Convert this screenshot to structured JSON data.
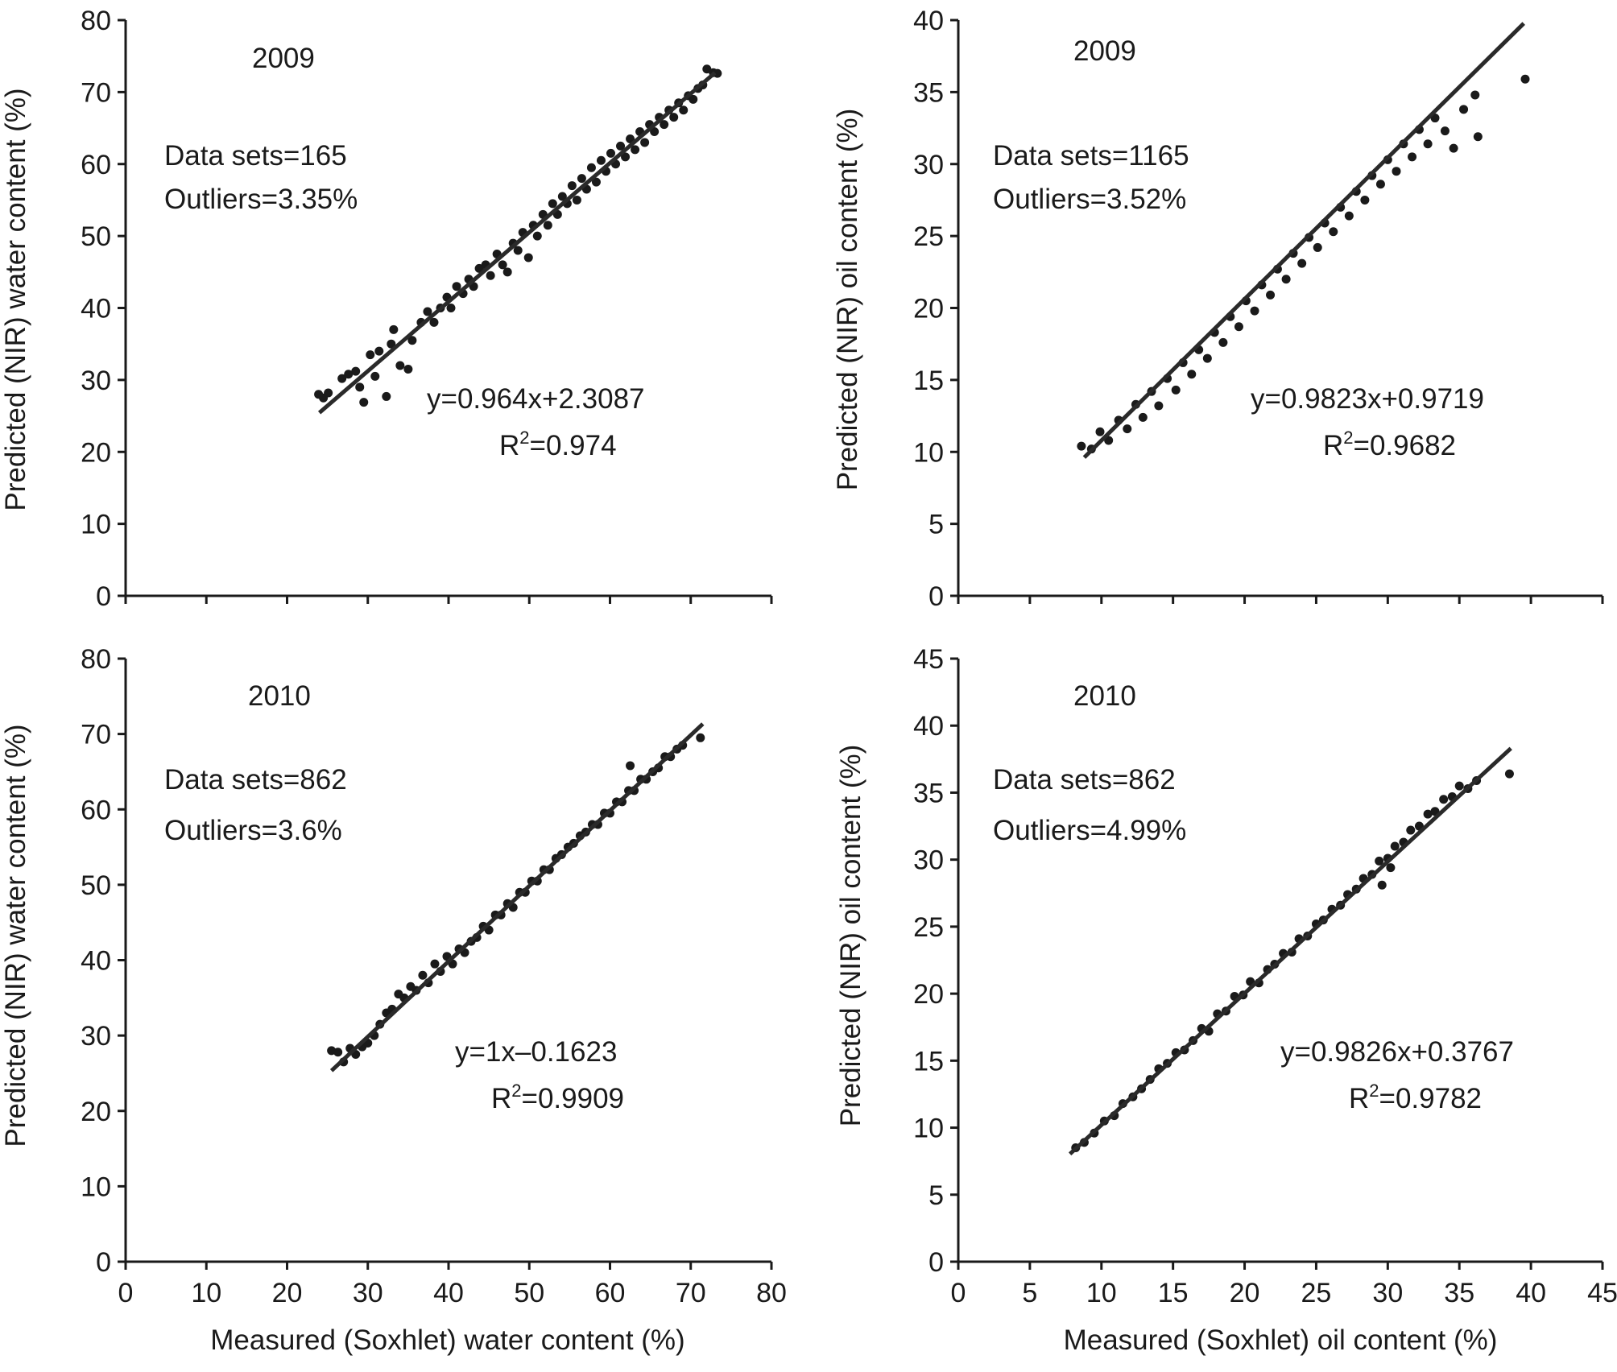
{
  "figure": {
    "xlabel_water": "Measured (Soxhlet) water content (%)",
    "xlabel_oil": "Measured (Soxhlet) oil content (%)"
  },
  "chart_data": [
    {
      "type": "scatter",
      "panel": "top-left",
      "year": "2009",
      "ylabel": "Predicted (NIR) water content (%)",
      "xlabel": "",
      "xlim": [
        0,
        80
      ],
      "ylim": [
        0,
        80
      ],
      "xticks": [
        0,
        10,
        20,
        30,
        40,
        50,
        60,
        70,
        80
      ],
      "yticks": [
        0,
        10,
        20,
        30,
        40,
        50,
        60,
        70,
        80
      ],
      "show_x_tick_labels": false,
      "data_sets_label": "Data sets=165",
      "outliers_label": "Outliers=3.35%",
      "equation_label": "y=0.964x+2.3087",
      "r2_label": "=0.974",
      "fit": {
        "slope": 0.964,
        "intercept": 2.3087,
        "x_range": [
          24,
          73
        ]
      },
      "points": [
        [
          23.9,
          28
        ],
        [
          24.5,
          27.5
        ],
        [
          25.1,
          28.2
        ],
        [
          26.8,
          30.2
        ],
        [
          27.6,
          30.8
        ],
        [
          28.5,
          31.2
        ],
        [
          29,
          29
        ],
        [
          29.5,
          26.9
        ],
        [
          30.3,
          33.5
        ],
        [
          30.9,
          30.5
        ],
        [
          31.4,
          34
        ],
        [
          32.3,
          27.7
        ],
        [
          32.9,
          35
        ],
        [
          33.2,
          37
        ],
        [
          34,
          32
        ],
        [
          35,
          31.5
        ],
        [
          35.5,
          35.5
        ],
        [
          36.6,
          38
        ],
        [
          37.4,
          39.5
        ],
        [
          38.2,
          38
        ],
        [
          39,
          40
        ],
        [
          39.8,
          41.5
        ],
        [
          40.3,
          40
        ],
        [
          41,
          43
        ],
        [
          41.8,
          42
        ],
        [
          42.5,
          44
        ],
        [
          43.1,
          43
        ],
        [
          43.8,
          45.5
        ],
        [
          44.6,
          46
        ],
        [
          45.2,
          44.5
        ],
        [
          46,
          47.5
        ],
        [
          46.7,
          46
        ],
        [
          47.3,
          45
        ],
        [
          48,
          49
        ],
        [
          48.6,
          48
        ],
        [
          49.2,
          50.5
        ],
        [
          49.9,
          47
        ],
        [
          50.5,
          51.5
        ],
        [
          51,
          50
        ],
        [
          51.7,
          53
        ],
        [
          52.3,
          51.5
        ],
        [
          52.9,
          54.5
        ],
        [
          53.5,
          53
        ],
        [
          54.1,
          55.5
        ],
        [
          54.7,
          54.5
        ],
        [
          55.3,
          57
        ],
        [
          55.9,
          55
        ],
        [
          56.5,
          58
        ],
        [
          57.1,
          56.5
        ],
        [
          57.7,
          59.5
        ],
        [
          58.3,
          57.5
        ],
        [
          58.9,
          60.5
        ],
        [
          59.5,
          59
        ],
        [
          60.1,
          61.5
        ],
        [
          60.7,
          60
        ],
        [
          61.3,
          62.5
        ],
        [
          61.9,
          61
        ],
        [
          62.5,
          63.5
        ],
        [
          63.1,
          62
        ],
        [
          63.7,
          64.5
        ],
        [
          64.3,
          63
        ],
        [
          64.9,
          65.5
        ],
        [
          65.5,
          64.5
        ],
        [
          66.1,
          66.5
        ],
        [
          66.7,
          65.5
        ],
        [
          67.3,
          67.5
        ],
        [
          67.9,
          66.5
        ],
        [
          68.5,
          68.5
        ],
        [
          69.1,
          67.5
        ],
        [
          69.7,
          69.5
        ],
        [
          70.3,
          69
        ],
        [
          70.9,
          70.5
        ],
        [
          71.5,
          71
        ],
        [
          72,
          73.2
        ],
        [
          72.8,
          72.7
        ],
        [
          73.3,
          72.6
        ]
      ]
    },
    {
      "type": "scatter",
      "panel": "top-right",
      "year": "2009",
      "ylabel": "Predicted (NIR) oil content (%)",
      "xlabel": "",
      "xlim": [
        0,
        45
      ],
      "ylim": [
        0,
        40
      ],
      "xticks": [
        0,
        5,
        10,
        15,
        20,
        25,
        30,
        35,
        40,
        45
      ],
      "yticks": [
        0,
        5,
        10,
        15,
        20,
        25,
        30,
        35,
        40
      ],
      "show_x_tick_labels": false,
      "data_sets_label": "Data sets=1165",
      "outliers_label": "Outliers=3.52%",
      "equation_label": "y=0.9823x+0.9719",
      "r2_label": "=0.9682",
      "fit": {
        "slope": 0.9823,
        "intercept": 0.9719,
        "x_range": [
          8.8,
          39.5
        ]
      },
      "points": [
        [
          8.6,
          10.4
        ],
        [
          9.3,
          10.2
        ],
        [
          9.9,
          11.4
        ],
        [
          10.5,
          10.8
        ],
        [
          11.2,
          12.2
        ],
        [
          11.8,
          11.6
        ],
        [
          12.4,
          13.3
        ],
        [
          12.9,
          12.4
        ],
        [
          13.5,
          14.2
        ],
        [
          14,
          13.2
        ],
        [
          14.6,
          15.1
        ],
        [
          15.2,
          14.3
        ],
        [
          15.7,
          16.2
        ],
        [
          16.3,
          15.4
        ],
        [
          16.8,
          17.1
        ],
        [
          17.4,
          16.5
        ],
        [
          17.9,
          18.3
        ],
        [
          18.5,
          17.6
        ],
        [
          19,
          19.4
        ],
        [
          19.6,
          18.7
        ],
        [
          20.1,
          20.5
        ],
        [
          20.7,
          19.8
        ],
        [
          21.2,
          21.6
        ],
        [
          21.8,
          20.9
        ],
        [
          22.3,
          22.7
        ],
        [
          22.9,
          22
        ],
        [
          23.4,
          23.8
        ],
        [
          24,
          23.1
        ],
        [
          24.5,
          24.9
        ],
        [
          25.1,
          24.2
        ],
        [
          25.6,
          25.9
        ],
        [
          26.2,
          25.3
        ],
        [
          26.7,
          27
        ],
        [
          27.3,
          26.4
        ],
        [
          27.8,
          28.1
        ],
        [
          28.4,
          27.5
        ],
        [
          28.9,
          29.2
        ],
        [
          29.5,
          28.6
        ],
        [
          30,
          30.3
        ],
        [
          30.6,
          29.5
        ],
        [
          31.1,
          31.4
        ],
        [
          31.7,
          30.5
        ],
        [
          32.2,
          32.4
        ],
        [
          32.8,
          31.4
        ],
        [
          33.3,
          33.2
        ],
        [
          34,
          32.3
        ],
        [
          34.6,
          31.1
        ],
        [
          35.3,
          33.8
        ],
        [
          36.1,
          34.8
        ],
        [
          36.3,
          31.9
        ],
        [
          39.6,
          35.9
        ]
      ]
    },
    {
      "type": "scatter",
      "panel": "bottom-left",
      "year": "2010",
      "ylabel": "Predicted (NIR) water content (%)",
      "xlabel": "Measured (Soxhlet) water content (%)",
      "xlim": [
        0,
        80
      ],
      "ylim": [
        0,
        80
      ],
      "xticks": [
        0,
        10,
        20,
        30,
        40,
        50,
        60,
        70,
        80
      ],
      "yticks": [
        0,
        10,
        20,
        30,
        40,
        50,
        60,
        70,
        80
      ],
      "show_x_tick_labels": true,
      "data_sets_label": "Data sets=862",
      "outliers_label": "Outliers=3.6%",
      "equation_label": "y=1x–0.1623",
      "r2_label": "=0.9909",
      "fit": {
        "slope": 1,
        "intercept": -0.1623,
        "x_range": [
          25.5,
          71.5
        ]
      },
      "points": [
        [
          25.5,
          28
        ],
        [
          26.3,
          27.8
        ],
        [
          27,
          26.5
        ],
        [
          27.8,
          28.3
        ],
        [
          28.5,
          27.5
        ],
        [
          29.3,
          28.5
        ],
        [
          30,
          29
        ],
        [
          30.8,
          30
        ],
        [
          31.5,
          31.5
        ],
        [
          32.3,
          33
        ],
        [
          33,
          33.5
        ],
        [
          33.8,
          35.5
        ],
        [
          34.5,
          35
        ],
        [
          35.3,
          36.5
        ],
        [
          36,
          36
        ],
        [
          36.8,
          38
        ],
        [
          37.5,
          37
        ],
        [
          38.3,
          39.5
        ],
        [
          39,
          38.5
        ],
        [
          39.8,
          40.5
        ],
        [
          40.5,
          39.5
        ],
        [
          41.3,
          41.5
        ],
        [
          42,
          41
        ],
        [
          42.8,
          42.5
        ],
        [
          43.5,
          43
        ],
        [
          44.3,
          44.5
        ],
        [
          45,
          44
        ],
        [
          45.8,
          46
        ],
        [
          46.5,
          46
        ],
        [
          47.3,
          47.5
        ],
        [
          48,
          47
        ],
        [
          48.8,
          49
        ],
        [
          49.5,
          49
        ],
        [
          50.3,
          50.5
        ],
        [
          51,
          50.5
        ],
        [
          51.8,
          52
        ],
        [
          52.5,
          52
        ],
        [
          53.3,
          53.5
        ],
        [
          54,
          54
        ],
        [
          54.8,
          55
        ],
        [
          55.5,
          55.5
        ],
        [
          56.3,
          56.5
        ],
        [
          57,
          57
        ],
        [
          57.8,
          58
        ],
        [
          58.5,
          58
        ],
        [
          59.3,
          59.5
        ],
        [
          60,
          59.5
        ],
        [
          60.8,
          61
        ],
        [
          61.5,
          61
        ],
        [
          62.3,
          62.5
        ],
        [
          63,
          62.5
        ],
        [
          63.8,
          64
        ],
        [
          64.5,
          64
        ],
        [
          65.3,
          65
        ],
        [
          66,
          65.5
        ],
        [
          66.8,
          67
        ],
        [
          67.5,
          67
        ],
        [
          68.3,
          68
        ],
        [
          69,
          68.5
        ],
        [
          71.2,
          69.5
        ],
        [
          62.5,
          65.8
        ]
      ]
    },
    {
      "type": "scatter",
      "panel": "bottom-right",
      "year": "2010",
      "ylabel": "Predicted (NIR) oil content (%)",
      "xlabel": "Measured (Soxhlet) oil content (%)",
      "xlim": [
        0,
        45
      ],
      "ylim": [
        0,
        45
      ],
      "xticks": [
        0,
        5,
        10,
        15,
        20,
        25,
        30,
        35,
        40,
        45
      ],
      "yticks": [
        0,
        5,
        10,
        15,
        20,
        25,
        30,
        35,
        40,
        45
      ],
      "show_x_tick_labels": true,
      "data_sets_label": "Data sets=862",
      "outliers_label": "Outliers=4.99%",
      "equation_label": "y=0.9826x+0.3767",
      "r2_label": "=0.9782",
      "fit": {
        "slope": 0.9826,
        "intercept": 0.3767,
        "x_range": [
          7.8,
          38.6
        ]
      },
      "points": [
        [
          8.2,
          8.5
        ],
        [
          8.8,
          8.9
        ],
        [
          9.5,
          9.6
        ],
        [
          10.2,
          10.5
        ],
        [
          10.9,
          10.9
        ],
        [
          11.5,
          11.8
        ],
        [
          12.2,
          12.3
        ],
        [
          12.8,
          12.9
        ],
        [
          13.4,
          13.6
        ],
        [
          14,
          14.4
        ],
        [
          14.6,
          14.8
        ],
        [
          15.2,
          15.6
        ],
        [
          15.8,
          15.8
        ],
        [
          16.4,
          16.5
        ],
        [
          17,
          17.4
        ],
        [
          17.5,
          17.2
        ],
        [
          18.1,
          18.5
        ],
        [
          18.7,
          18.7
        ],
        [
          19.3,
          19.8
        ],
        [
          19.9,
          19.9
        ],
        [
          20.4,
          20.9
        ],
        [
          21,
          20.8
        ],
        [
          21.6,
          21.8
        ],
        [
          22.1,
          22.2
        ],
        [
          22.7,
          23
        ],
        [
          23.3,
          23.1
        ],
        [
          23.8,
          24.1
        ],
        [
          24.4,
          24.3
        ],
        [
          25,
          25.2
        ],
        [
          25.5,
          25.5
        ],
        [
          26.1,
          26.3
        ],
        [
          26.7,
          26.6
        ],
        [
          27.2,
          27.4
        ],
        [
          27.8,
          27.8
        ],
        [
          28.3,
          28.6
        ],
        [
          28.9,
          28.9
        ],
        [
          29.4,
          29.9
        ],
        [
          30,
          30.1
        ],
        [
          30.5,
          31
        ],
        [
          31.1,
          31.3
        ],
        [
          31.6,
          32.2
        ],
        [
          32.2,
          32.5
        ],
        [
          32.8,
          33.4
        ],
        [
          33.3,
          33.6
        ],
        [
          33.9,
          34.5
        ],
        [
          34.5,
          34.7
        ],
        [
          35,
          35.5
        ],
        [
          35.6,
          35.3
        ],
        [
          36.2,
          35.9
        ],
        [
          38.5,
          36.4
        ],
        [
          29.6,
          28.1
        ],
        [
          30.2,
          29.4
        ]
      ]
    }
  ]
}
